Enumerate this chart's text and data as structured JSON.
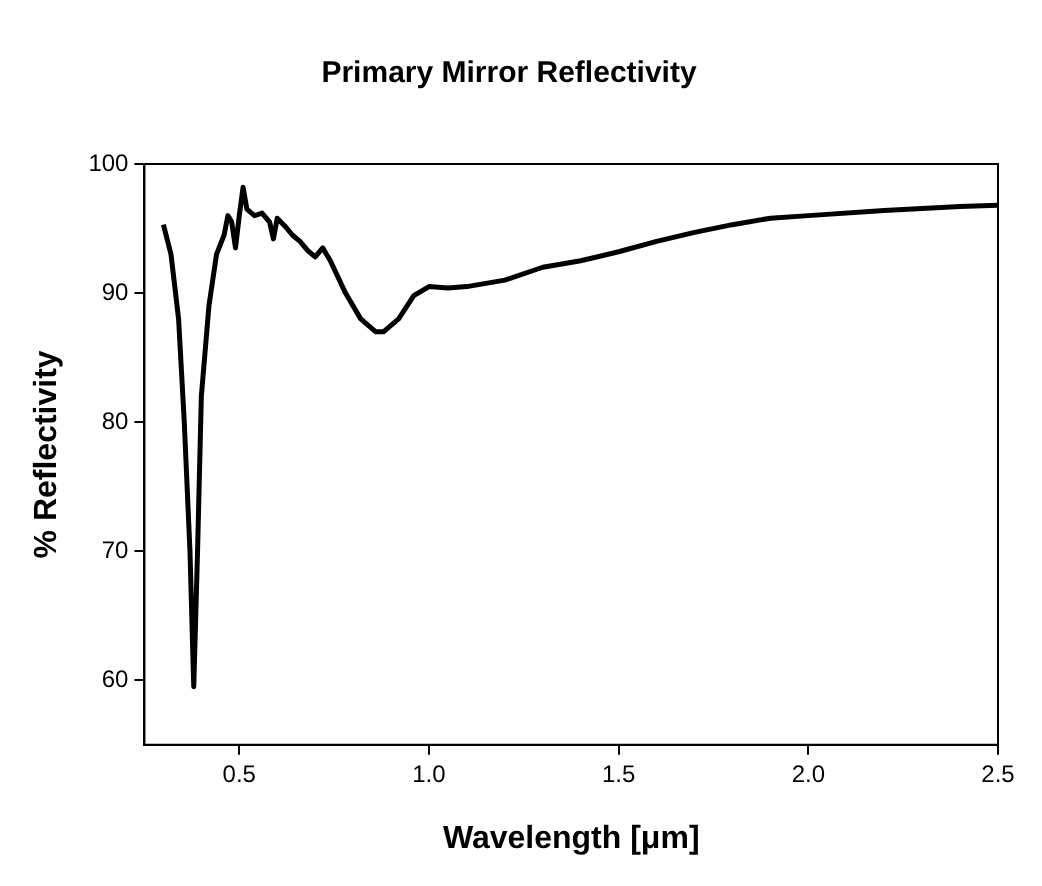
{
  "chart_data": {
    "type": "line",
    "title": "Primary Mirror Reflectivity",
    "xlabel": "Wavelength [μm]",
    "ylabel": "% Reflectivity",
    "x": [
      0.3,
      0.32,
      0.34,
      0.355,
      0.37,
      0.38,
      0.39,
      0.4,
      0.42,
      0.44,
      0.46,
      0.47,
      0.48,
      0.49,
      0.5,
      0.51,
      0.52,
      0.54,
      0.56,
      0.58,
      0.59,
      0.6,
      0.62,
      0.64,
      0.66,
      0.68,
      0.7,
      0.72,
      0.74,
      0.78,
      0.82,
      0.86,
      0.88,
      0.92,
      0.96,
      1.0,
      1.05,
      1.1,
      1.2,
      1.3,
      1.4,
      1.5,
      1.6,
      1.7,
      1.8,
      1.9,
      2.0,
      2.2,
      2.4,
      2.5
    ],
    "series": [
      {
        "color": "#000000",
        "values": [
          95.3,
          93,
          88,
          80,
          70,
          59.5,
          70,
          82,
          89,
          93,
          94.5,
          96,
          95.5,
          93.5,
          96,
          98.2,
          96.5,
          96,
          96.2,
          95.5,
          94.2,
          95.8,
          95.2,
          94.5,
          94,
          93.3,
          92.8,
          93.5,
          92.5,
          90,
          88,
          87,
          87,
          88,
          89.8,
          90.5,
          90.4,
          90.5,
          91,
          92,
          92.5,
          93.2,
          94,
          94.7,
          95.3,
          95.8,
          96,
          96.4,
          96.7,
          96.8
        ]
      }
    ],
    "xlim": [
      0.25,
      2.5
    ],
    "xticks": [
      {
        "value": 0.5,
        "label": "0.5"
      },
      {
        "value": 1,
        "label": "1.0"
      },
      {
        "value": 1.5,
        "label": "1.5"
      },
      {
        "value": 2,
        "label": "2.0"
      },
      {
        "value": 2.5,
        "label": "2.5"
      }
    ],
    "ylim": [
      55,
      100
    ],
    "yticks": [
      60,
      70,
      80,
      90,
      100
    ],
    "grid": false,
    "legend": false,
    "marker": "none",
    "line_style": "solid"
  }
}
